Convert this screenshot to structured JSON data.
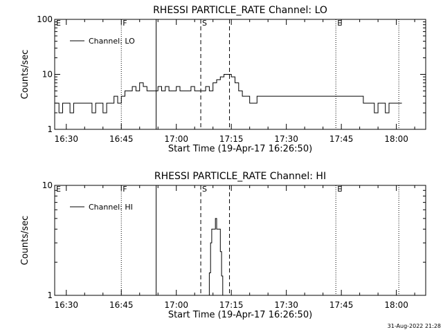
{
  "chart_data": [
    {
      "type": "line",
      "title": "RHESSI PARTICLE_RATE Channel: LO",
      "xlabel": "Start Time (19-Apr-17 16:26:50)",
      "ylabel": "Counts/sec",
      "y_scale": "log",
      "ylim": [
        1,
        100
      ],
      "y_ticks": [
        {
          "value": 1,
          "label": "1"
        },
        {
          "value": 10,
          "label": "10"
        },
        {
          "value": 100,
          "label": "100"
        }
      ],
      "xlim": [
        "16:26:50",
        "18:08:00"
      ],
      "x_ticks": [
        "16:30",
        "16:45",
        "17:00",
        "17:15",
        "17:30",
        "17:45",
        "18:00"
      ],
      "legend": {
        "position": "top-left",
        "entries": [
          "Channel: LO"
        ]
      },
      "series": [
        {
          "name": "Channel: LO",
          "x": [
            "16:27",
            "16:28",
            "16:29",
            "16:30",
            "16:31",
            "16:32",
            "16:33",
            "16:34",
            "16:35",
            "16:36",
            "16:37",
            "16:38",
            "16:39",
            "16:40",
            "16:41",
            "16:42",
            "16:43",
            "16:44",
            "16:45",
            "16:46",
            "16:47",
            "16:48",
            "16:49",
            "16:50",
            "16:51",
            "16:52",
            "16:53",
            "16:54",
            "16:55",
            "16:56",
            "16:57",
            "16:58",
            "16:59",
            "17:00",
            "17:01",
            "17:02",
            "17:03",
            "17:04",
            "17:05",
            "17:06",
            "17:07",
            "17:08",
            "17:09",
            "17:10",
            "17:11",
            "17:12",
            "17:13",
            "17:14",
            "17:15",
            "17:16",
            "17:17",
            "17:18",
            "17:20",
            "17:22",
            "17:24",
            "17:26",
            "17:28",
            "17:30",
            "17:32",
            "17:34",
            "17:36",
            "17:38",
            "17:40",
            "17:42",
            "17:44",
            "17:46",
            "17:47",
            "17:48",
            "17:49",
            "17:50",
            "17:51",
            "17:52",
            "17:53",
            "17:54",
            "17:55",
            "17:56",
            "17:57",
            "17:58",
            "17:59",
            "18:00",
            "18:01"
          ],
          "y": [
            3,
            2,
            3,
            3,
            2,
            3,
            3,
            3,
            3,
            3,
            2,
            3,
            3,
            2,
            3,
            3,
            4,
            3,
            4,
            5,
            5,
            6,
            5,
            7,
            6,
            5,
            5,
            5,
            6,
            5,
            6,
            5,
            5,
            6,
            5,
            5,
            5,
            6,
            5,
            5,
            5,
            6,
            5,
            7,
            8,
            9,
            10,
            10,
            9,
            7,
            5,
            4,
            3,
            4,
            4,
            4,
            4,
            4,
            4,
            4,
            4,
            4,
            4,
            4,
            4,
            4,
            4,
            4,
            4,
            4,
            3,
            3,
            3,
            2,
            3,
            3,
            2,
            3,
            3,
            3,
            3
          ]
        }
      ],
      "event_markers": [
        {
          "label": "E",
          "time": "16:26:50",
          "style": "solid"
        },
        {
          "label": "F",
          "time": "16:45:00",
          "style": "dotted"
        },
        {
          "label": "",
          "time": "16:54:30",
          "style": "solid"
        },
        {
          "label": "S",
          "time": "17:06:40",
          "style": "dashed"
        },
        {
          "label": "",
          "time": "17:14:30",
          "style": "dashed"
        },
        {
          "label": "E",
          "time": "17:43:30",
          "style": "dotted"
        },
        {
          "label": "",
          "time": "18:00:40",
          "style": "dotted"
        }
      ]
    },
    {
      "type": "line",
      "title": "RHESSI PARTICLE_RATE Channel: HI",
      "xlabel": "Start Time (19-Apr-17 16:26:50)",
      "ylabel": "Counts/sec",
      "y_scale": "log",
      "ylim": [
        1,
        10
      ],
      "y_ticks": [
        {
          "value": 1,
          "label": "1"
        },
        {
          "value": 10,
          "label": "10"
        }
      ],
      "xlim": [
        "16:26:50",
        "18:08:00"
      ],
      "x_ticks": [
        "16:30",
        "16:45",
        "17:00",
        "17:15",
        "17:30",
        "17:45",
        "18:00"
      ],
      "legend": {
        "position": "top-left",
        "entries": [
          "Channel: HI"
        ]
      },
      "series": [
        {
          "name": "Channel: HI",
          "x": [
            "17:08:40",
            "17:09:00",
            "17:09:20",
            "17:09:40",
            "17:10:00",
            "17:10:20",
            "17:10:40",
            "17:11:00",
            "17:11:20",
            "17:11:40",
            "17:12:00",
            "17:12:20",
            "17:12:40"
          ],
          "y": [
            1,
            1.6,
            3,
            4,
            4,
            4,
            5,
            4,
            4,
            4,
            2.5,
            1.5,
            1
          ]
        }
      ],
      "event_markers": [
        {
          "label": "E",
          "time": "16:26:50",
          "style": "solid"
        },
        {
          "label": "F",
          "time": "16:45:00",
          "style": "dotted"
        },
        {
          "label": "",
          "time": "16:54:30",
          "style": "solid"
        },
        {
          "label": "S",
          "time": "17:06:40",
          "style": "dashed"
        },
        {
          "label": "",
          "time": "17:14:30",
          "style": "dashed"
        },
        {
          "label": "E",
          "time": "17:43:30",
          "style": "dotted"
        },
        {
          "label": "",
          "time": "18:00:40",
          "style": "dotted"
        }
      ]
    }
  ],
  "footer": {
    "timestamp": "31-Aug-2022 21:28"
  }
}
